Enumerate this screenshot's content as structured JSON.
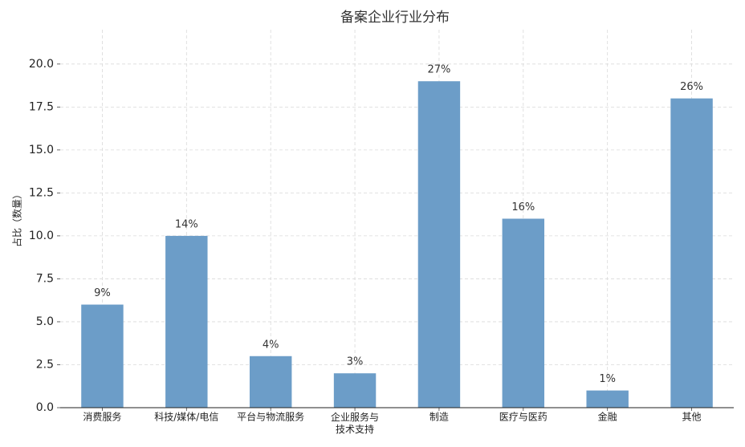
{
  "chart_data": {
    "type": "bar",
    "title": "备案企业行业分布",
    "y_label": "占比（数量）",
    "categories": [
      "消费服务",
      "科技/媒体/电信",
      "平台与物流服务",
      "企业服务与\n技术支持",
      "制造",
      "医疗与医药",
      "金融",
      "其他"
    ],
    "values": [
      6,
      10,
      3,
      2,
      19,
      11,
      1,
      18
    ],
    "value_labels": [
      "9%",
      "14%",
      "4%",
      "3%",
      "27%",
      "16%",
      "1%",
      "26%"
    ],
    "color": "#6c9dc8",
    "ylim": [
      0,
      22
    ],
    "yticks": [
      {
        "value": 0,
        "label": "0.0"
      },
      {
        "value": 2.5,
        "label": "2.5"
      },
      {
        "value": 5,
        "label": "5.0"
      },
      {
        "value": 7.5,
        "label": "7.5"
      },
      {
        "value": 10,
        "label": "10.0"
      },
      {
        "value": 12.5,
        "label": "12.5"
      },
      {
        "value": 15,
        "label": "15.0"
      },
      {
        "value": 17.5,
        "label": "17.5"
      },
      {
        "value": 20,
        "label": "20.0"
      }
    ],
    "grid": true
  }
}
